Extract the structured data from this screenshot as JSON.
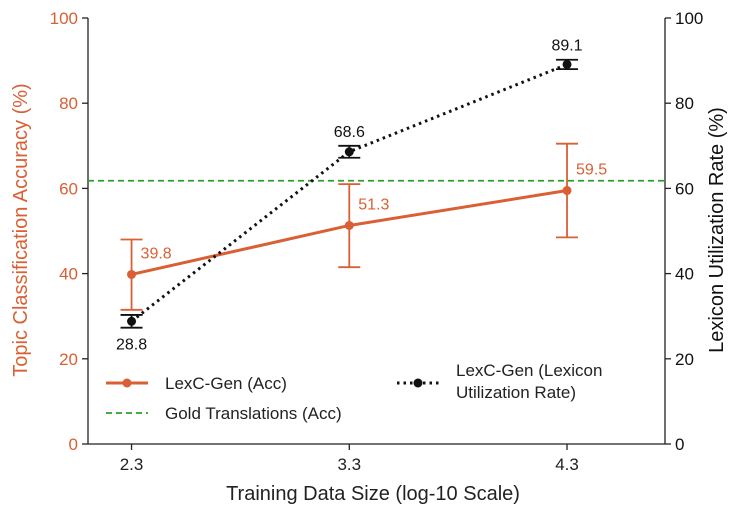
{
  "chart_data": {
    "type": "line",
    "x": [
      2.3,
      3.3,
      4.3
    ],
    "x_tick_labels": [
      "2.3",
      "3.3",
      "4.3"
    ],
    "xlabel": "Training Data Size (log-10 Scale)",
    "ylabel_left": "Topic Classification Accuracy (%)",
    "ylabel_right": "Lexicon Utilization Rate (%)",
    "ylim_left": [
      0,
      100
    ],
    "ylim_right": [
      0,
      100
    ],
    "y_ticks": [
      "0",
      "20",
      "40",
      "60",
      "80",
      "100"
    ],
    "grid": false,
    "legend_placement": "bottom",
    "series": [
      {
        "name": "LexC-Gen (Acc)",
        "axis": "left",
        "color": "#d95f34",
        "style": "solid-line-circle-markers",
        "values": [
          39.8,
          51.3,
          59.5
        ],
        "err_low": [
          31.5,
          41.5,
          48.5
        ],
        "err_high": [
          48.0,
          61.0,
          70.5
        ],
        "labels": [
          "39.8",
          "51.3",
          "59.5"
        ]
      },
      {
        "name": "Gold Translations (Acc)",
        "axis": "left",
        "color": "#2ca02c",
        "style": "dashed-horizontal-line",
        "value": 61.8
      },
      {
        "name": "LexC-Gen (Lexicon Utilization Rate)",
        "legend_lines": [
          "LexC-Gen (Lexicon",
          "Utilization Rate)"
        ],
        "axis": "right",
        "color": "#111111",
        "style": "dotted-line-circle-markers",
        "values": [
          28.8,
          68.6,
          89.1
        ],
        "err_low": [
          27.3,
          67.2,
          88.0
        ],
        "err_high": [
          30.3,
          70.0,
          90.2
        ],
        "labels": [
          "28.8",
          "68.6",
          "89.1"
        ]
      }
    ]
  }
}
